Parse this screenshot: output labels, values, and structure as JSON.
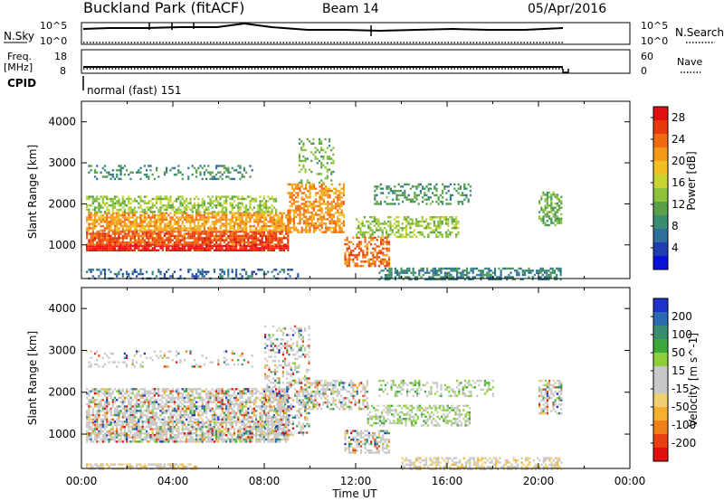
{
  "header": {
    "station": "Buckland Park (fitACF)",
    "beam": "Beam 14",
    "date": "05/Apr/2016"
  },
  "panels": {
    "nsky_label": "N.Sky",
    "nsearch_label": "N.Search",
    "freq_label_1": "Freq.",
    "freq_label_2": "[MHz]",
    "nave_label": "Nave",
    "cpid_label": "CPID",
    "cpid_value": "normal (fast) 151",
    "noise_ticks": [
      "10^5",
      "10^0"
    ],
    "freq_ticks": [
      "18",
      "8"
    ],
    "nave_ticks": [
      "60",
      "0"
    ]
  },
  "chart_data": [
    {
      "type": "heatmap",
      "name": "power",
      "ylabel": "Slant Range [km]",
      "xlabel": "Time UT",
      "x_ticks": [
        "00:00",
        "04:00",
        "08:00",
        "12:00",
        "16:00",
        "20:00",
        "00:00"
      ],
      "y_ticks": [
        1000,
        2000,
        3000,
        4000
      ],
      "ylim": [
        180,
        4500
      ],
      "xlim_hours": [
        0,
        24
      ],
      "colorbar": {
        "label": "Power [dB]",
        "ticks": [
          4,
          8,
          12,
          16,
          20,
          24,
          28
        ],
        "range": [
          0,
          30
        ],
        "colors": [
          "#0a10d8",
          "#1f3fb0",
          "#2f6f9a",
          "#3a8c6e",
          "#5aa048",
          "#8cc33a",
          "#c8d431",
          "#f0c020",
          "#f59a18",
          "#f06a10",
          "#e83a0a",
          "#e01010"
        ]
      },
      "regions": [
        {
          "t": [
            0.2,
            9.5
          ],
          "r": [
            180,
            420
          ],
          "power": 6,
          "density": 0.35
        },
        {
          "t": [
            0.2,
            9.0
          ],
          "r": [
            850,
            1000
          ],
          "power": 29,
          "density": 0.9
        },
        {
          "t": [
            0.2,
            9.0
          ],
          "r": [
            1000,
            1350
          ],
          "power": 25,
          "density": 0.85
        },
        {
          "t": [
            0.2,
            9.0
          ],
          "r": [
            1350,
            1800
          ],
          "power": 21,
          "density": 0.75
        },
        {
          "t": [
            0.2,
            8.5
          ],
          "r": [
            1800,
            2200
          ],
          "power": 14,
          "density": 0.55
        },
        {
          "t": [
            0.2,
            7.5
          ],
          "r": [
            2600,
            2950
          ],
          "power": 9,
          "density": 0.25
        },
        {
          "t": [
            9.0,
            11.5
          ],
          "r": [
            1300,
            2500
          ],
          "power": 22,
          "density": 0.6
        },
        {
          "t": [
            9.5,
            11.0
          ],
          "r": [
            2500,
            3600
          ],
          "power": 12,
          "density": 0.3
        },
        {
          "t": [
            12.0,
            16.5
          ],
          "r": [
            1200,
            1700
          ],
          "power": 14,
          "density": 0.5
        },
        {
          "t": [
            12.8,
            17.0
          ],
          "r": [
            2000,
            2500
          ],
          "power": 10,
          "density": 0.35
        },
        {
          "t": [
            11.5,
            13.5
          ],
          "r": [
            500,
            1200
          ],
          "power": 24,
          "density": 0.55
        },
        {
          "t": [
            13.0,
            21.0
          ],
          "r": [
            180,
            450
          ],
          "power": 8,
          "density": 0.55
        },
        {
          "t": [
            20.0,
            21.0
          ],
          "r": [
            1500,
            2300
          ],
          "power": 12,
          "density": 0.55
        }
      ]
    },
    {
      "type": "heatmap",
      "name": "velocity",
      "ylabel": "Slant Range [km]",
      "xlabel": "Time UT",
      "x_ticks": [
        "00:00",
        "04:00",
        "08:00",
        "12:00",
        "16:00",
        "20:00",
        "00:00"
      ],
      "y_ticks": [
        1000,
        2000,
        3000,
        4000
      ],
      "ylim": [
        180,
        4500
      ],
      "xlim_hours": [
        0,
        24
      ],
      "colorbar": {
        "label": "Velocity [m s^-1]",
        "ticks": [
          200,
          100,
          50,
          15,
          -15,
          -50,
          -100,
          -200
        ],
        "range": [
          -250,
          250
        ],
        "colors": [
          "#2030c8",
          "#2a6ab0",
          "#3a8c6e",
          "#3ca83c",
          "#8ccf3a",
          "#c8c8c8",
          "#c8c8c8",
          "#f0d070",
          "#f5b030",
          "#f08018",
          "#e84010",
          "#e01010"
        ]
      },
      "regions": [
        {
          "t": [
            0.2,
            9.0
          ],
          "r": [
            800,
            1000
          ],
          "velocity": 0,
          "density": 0.8
        },
        {
          "t": [
            0.2,
            9.0
          ],
          "r": [
            1000,
            1300
          ],
          "velocity": 0,
          "density": 0.75
        },
        {
          "t": [
            0.2,
            9.0
          ],
          "r": [
            1300,
            2100
          ],
          "velocity": 0,
          "density": 0.65
        },
        {
          "t": [
            0.2,
            7.5
          ],
          "r": [
            2600,
            3000
          ],
          "velocity": 0,
          "density": 0.2
        },
        {
          "t": [
            8.0,
            10.0
          ],
          "r": [
            1000,
            3600
          ],
          "velocity": 0,
          "density": 0.35
        },
        {
          "t": [
            9.5,
            12.5
          ],
          "r": [
            1600,
            2300
          ],
          "velocity": 0,
          "density": 0.5
        },
        {
          "t": [
            11.5,
            13.5
          ],
          "r": [
            550,
            1100
          ],
          "velocity": 0,
          "density": 0.5
        },
        {
          "t": [
            12.5,
            17.0
          ],
          "r": [
            1200,
            1700
          ],
          "velocity": 40,
          "density": 0.5
        },
        {
          "t": [
            13.0,
            18.0
          ],
          "r": [
            1900,
            2300
          ],
          "velocity": 40,
          "density": 0.35
        },
        {
          "t": [
            0.2,
            5.0
          ],
          "r": [
            180,
            300
          ],
          "velocity": -40,
          "density": 0.6
        },
        {
          "t": [
            14.0,
            21.0
          ],
          "r": [
            180,
            450
          ],
          "velocity": -40,
          "density": 0.55
        },
        {
          "t": [
            20.0,
            21.0
          ],
          "r": [
            1500,
            2300
          ],
          "velocity": 0,
          "density": 0.5
        }
      ]
    }
  ]
}
